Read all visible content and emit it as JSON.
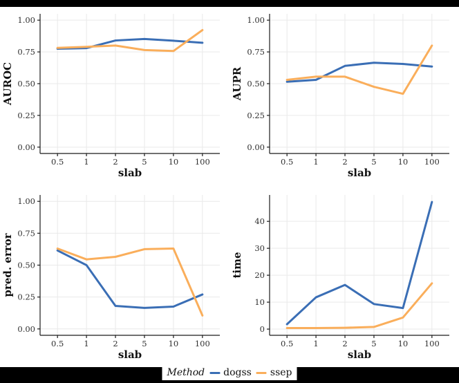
{
  "figure": {
    "background": "#000000",
    "panel_background": "#ffffff",
    "gridline_color": "#e9e9e9",
    "axis_color": "#1a1a1a",
    "tick_label_color": "#303030"
  },
  "legend": {
    "title": "Method",
    "position": "bottom-center",
    "entries": [
      {
        "label": "dogss",
        "color": "#3a6eb5"
      },
      {
        "label": "ssep",
        "color": "#faae5b"
      }
    ]
  },
  "chart_data": [
    {
      "type": "line",
      "title": "",
      "xlabel": "slab",
      "ylabel": "AUROC",
      "x_scale": "discrete",
      "grid": true,
      "categories": [
        "0.5",
        "1",
        "2",
        "5",
        "10",
        "100"
      ],
      "series": [
        {
          "name": "dogss",
          "color": "#3a6eb5",
          "values": [
            0.775,
            0.78,
            0.84,
            0.852,
            0.838,
            0.822
          ]
        },
        {
          "name": "ssep",
          "color": "#faae5b",
          "values": [
            0.782,
            0.79,
            0.8,
            0.765,
            0.757,
            0.922
          ]
        }
      ],
      "yticks": [
        0,
        0.25,
        0.5,
        0.75,
        1
      ],
      "ytick_labels": [
        "0.00",
        "0.25",
        "0.50",
        "0.75",
        "1.00"
      ],
      "ylim": [
        -0.05,
        1.05
      ]
    },
    {
      "type": "line",
      "title": "",
      "xlabel": "slab",
      "ylabel": "AUPR",
      "x_scale": "discrete",
      "grid": true,
      "categories": [
        "0.5",
        "1",
        "2",
        "5",
        "10",
        "100"
      ],
      "series": [
        {
          "name": "dogss",
          "color": "#3a6eb5",
          "values": [
            0.515,
            0.53,
            0.64,
            0.665,
            0.655,
            0.635
          ]
        },
        {
          "name": "ssep",
          "color": "#faae5b",
          "values": [
            0.53,
            0.555,
            0.555,
            0.475,
            0.42,
            0.8
          ]
        }
      ],
      "yticks": [
        0,
        0.25,
        0.5,
        0.75,
        1
      ],
      "ytick_labels": [
        "0.00",
        "0.25",
        "0.50",
        "0.75",
        "1.00"
      ],
      "ylim": [
        -0.05,
        1.05
      ]
    },
    {
      "type": "line",
      "title": "",
      "xlabel": "slab",
      "ylabel": "pred. error",
      "x_scale": "discrete",
      "grid": true,
      "categories": [
        "0.5",
        "1",
        "2",
        "5",
        "10",
        "100"
      ],
      "series": [
        {
          "name": "dogss",
          "color": "#3a6eb5",
          "values": [
            0.615,
            0.5,
            0.18,
            0.165,
            0.175,
            0.27
          ]
        },
        {
          "name": "ssep",
          "color": "#faae5b",
          "values": [
            0.63,
            0.545,
            0.565,
            0.625,
            0.63,
            0.105
          ]
        }
      ],
      "yticks": [
        0,
        0.25,
        0.5,
        0.75,
        1
      ],
      "ytick_labels": [
        "0.00",
        "0.25",
        "0.50",
        "0.75",
        "1.00"
      ],
      "ylim": [
        -0.05,
        1.05
      ]
    },
    {
      "type": "line",
      "title": "",
      "xlabel": "slab",
      "ylabel": "time",
      "x_scale": "discrete",
      "grid": true,
      "categories": [
        "0.5",
        "1",
        "2",
        "5",
        "10",
        "100"
      ],
      "series": [
        {
          "name": "dogss",
          "color": "#3a6eb5",
          "values": [
            1.8,
            11.8,
            16.4,
            9.3,
            7.8,
            47.2
          ]
        },
        {
          "name": "ssep",
          "color": "#faae5b",
          "values": [
            0.4,
            0.4,
            0.5,
            0.8,
            4.3,
            17.0
          ]
        }
      ],
      "yticks": [
        0,
        10,
        20,
        30,
        40
      ],
      "ytick_labels": [
        "0",
        "10",
        "20",
        "30",
        "40"
      ],
      "ylim": [
        -2.3,
        49.8
      ]
    }
  ]
}
